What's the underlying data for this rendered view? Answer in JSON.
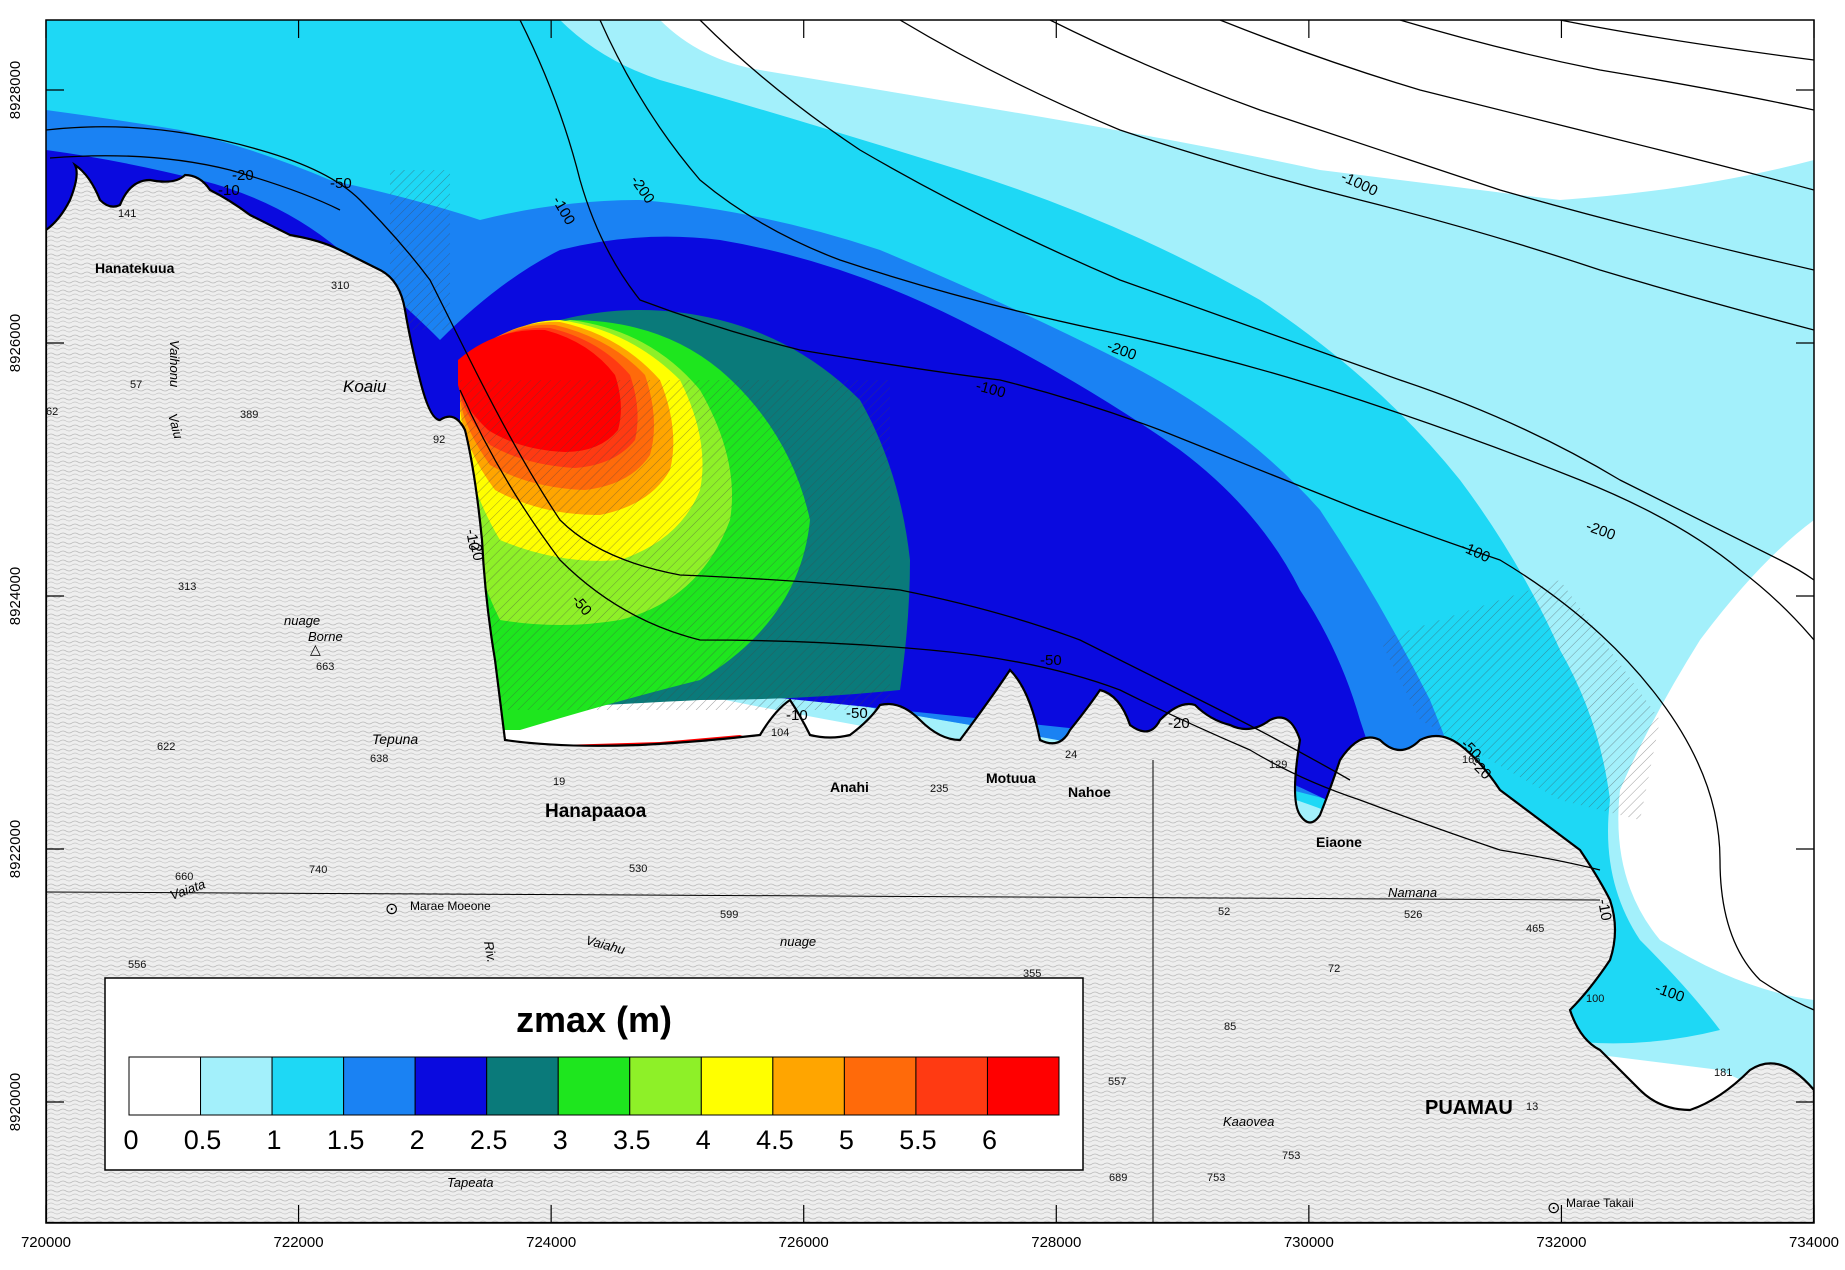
{
  "map": {
    "legend": {
      "title": "zmax (m)",
      "bins": [
        {
          "color": "#ffffff"
        },
        {
          "color": "#a3f0fb"
        },
        {
          "color": "#1ed8f5"
        },
        {
          "color": "#1a82f3"
        },
        {
          "color": "#0a0adf"
        },
        {
          "color": "#0a7a7a"
        },
        {
          "color": "#1ee61e"
        },
        {
          "color": "#8ef028"
        },
        {
          "color": "#ffff00"
        },
        {
          "color": "#ffa500"
        },
        {
          "color": "#ff6a0a"
        },
        {
          "color": "#ff3a12"
        },
        {
          "color": "#ff0000"
        }
      ],
      "tick_labels": [
        "0",
        "0.5",
        "1",
        "1.5",
        "2",
        "2.5",
        "3",
        "3.5",
        "4",
        "4.5",
        "5",
        "5.5",
        "6"
      ]
    },
    "x_axis": {
      "ticks": [
        "720000",
        "722000",
        "724000",
        "726000",
        "728000",
        "730000",
        "732000",
        "734000"
      ]
    },
    "y_axis": {
      "ticks": [
        "8928000",
        "8926000",
        "8924000",
        "8922000",
        "8920000"
      ]
    },
    "bathymetry_labels": [
      "-10",
      "-20",
      "-50",
      "-100",
      "-200",
      "-1000",
      "-200",
      "-100",
      "-200",
      "-100",
      "-50",
      "-20",
      "-10",
      "-20",
      "-50",
      "-50",
      "-20",
      "-10",
      "-10",
      "-50",
      "-100"
    ],
    "place_names": {
      "puamau": "PUAMAU",
      "hanapaaoa": "Hanapaaoa",
      "hanatekuua": "Hanatekuua",
      "koaiu": "Koaiu",
      "tepuna": "Tepuna",
      "anahi": "Anahi",
      "motuua": "Motuua",
      "nahoe": "Nahoe",
      "eiaone": "Eiaone",
      "namana": "Namana",
      "marae_moeone": "Marae\nMoeone",
      "marae_takaii": "Marae\nTakaii",
      "tapeata": "Tapeata",
      "kaaovea": "Kaaovea",
      "nuage1": "nuage",
      "borne": "Borne",
      "nuage2": "nuage",
      "vaihonu": "Vaihonu",
      "vaiu": "Vaiu",
      "vaiata": "Vaiata",
      "vaiahu": "Vaiahu",
      "riv": "Riv."
    },
    "spot_heights": [
      "141",
      "310",
      "389",
      "57",
      "62",
      "92",
      "313",
      "663",
      "622",
      "638",
      "740",
      "660",
      "556",
      "530",
      "599",
      "355",
      "19",
      "104",
      "235",
      "24",
      "129",
      "166",
      "526",
      "465",
      "72",
      "52",
      "85",
      "557",
      "689",
      "753",
      "753",
      "181",
      "13",
      "100"
    ]
  }
}
